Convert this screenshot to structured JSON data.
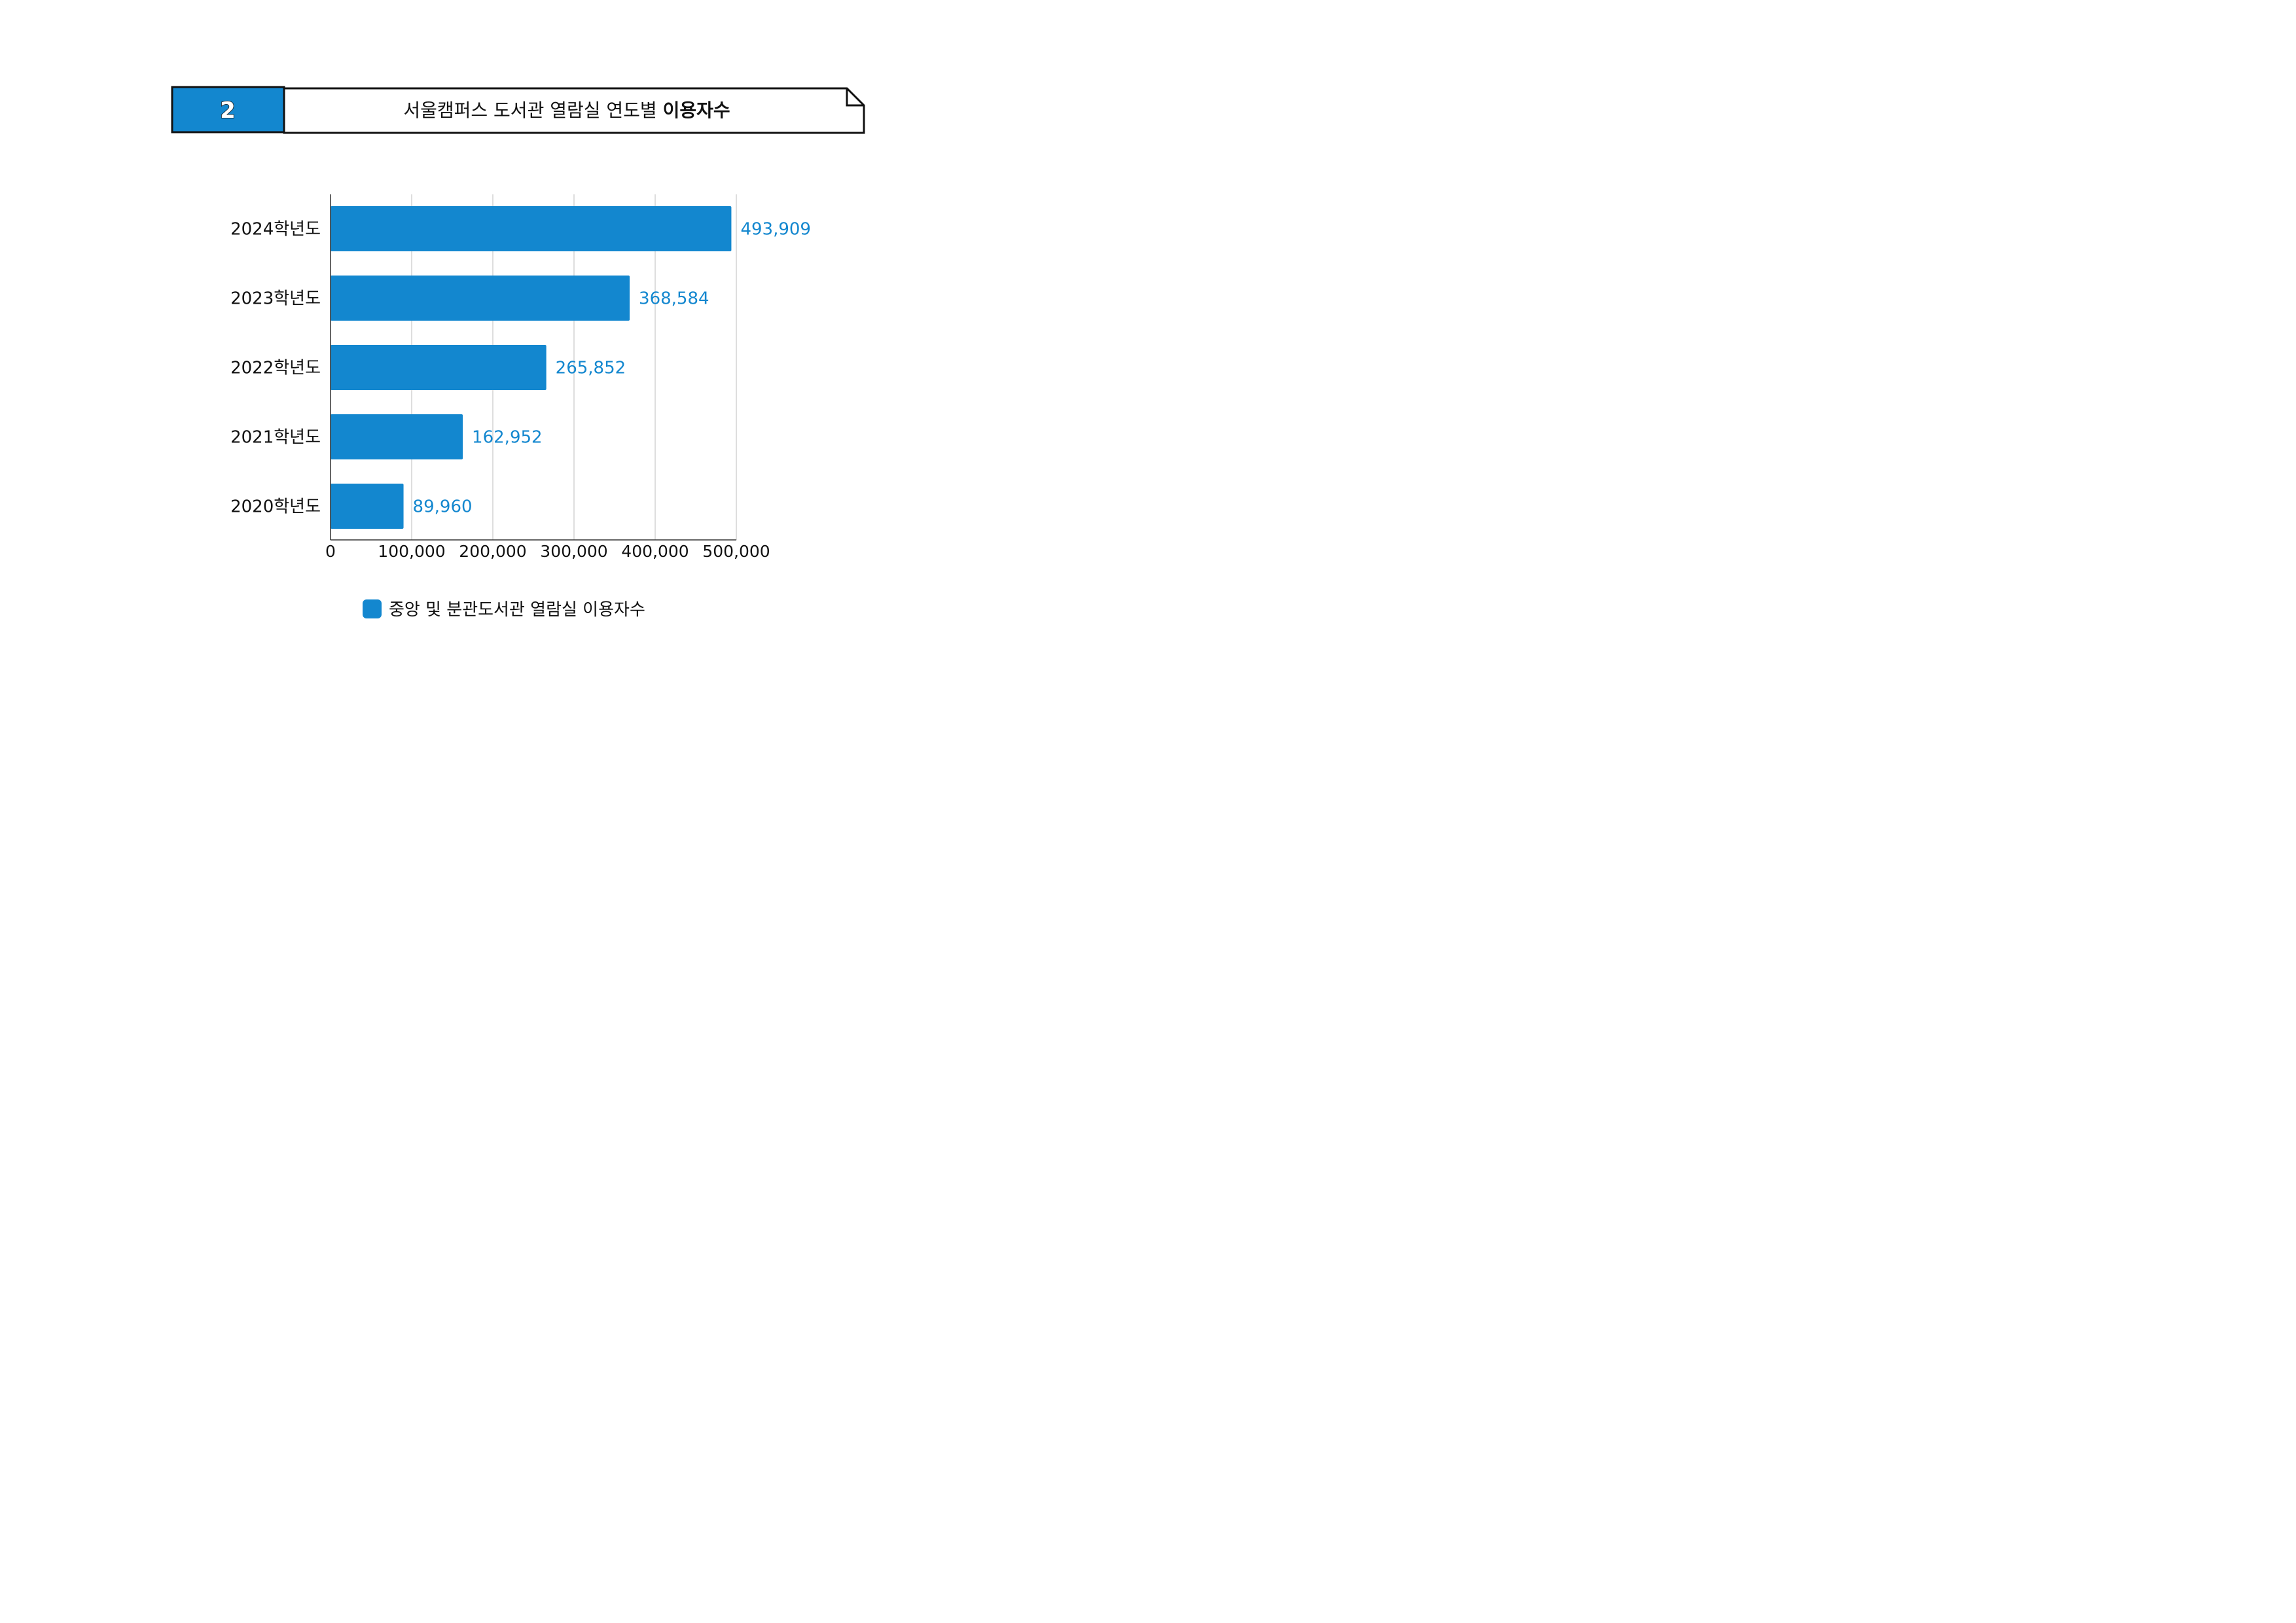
{
  "header": {
    "number": "2",
    "title_regular": "서울캠퍼스 도서관 열람실 연도별 ",
    "title_bold": "이용자수"
  },
  "colors": {
    "accent": "#1387cf",
    "grid": "#c8c8c8",
    "axis": "#333333",
    "text": "#111111"
  },
  "chart_data": {
    "type": "bar",
    "orientation": "horizontal",
    "categories": [
      "2024학년도",
      "2023학년도",
      "2022학년도",
      "2021학년도",
      "2020학년도"
    ],
    "series": [
      {
        "name": "중앙 및 분관도서관 열람실 이용자수",
        "values": [
          493909,
          368584,
          265852,
          162952,
          89960
        ],
        "labels": [
          "493,909",
          "368,584",
          "265,852",
          "162,952",
          "89,960"
        ]
      }
    ],
    "xlim": [
      0,
      500000
    ],
    "xticks": [
      0,
      100000,
      200000,
      300000,
      400000,
      500000
    ],
    "xtick_labels": [
      "0",
      "100,000",
      "200,000",
      "300,000",
      "400,000",
      "500,000"
    ],
    "grid": true,
    "legend_position": "bottom-center"
  }
}
